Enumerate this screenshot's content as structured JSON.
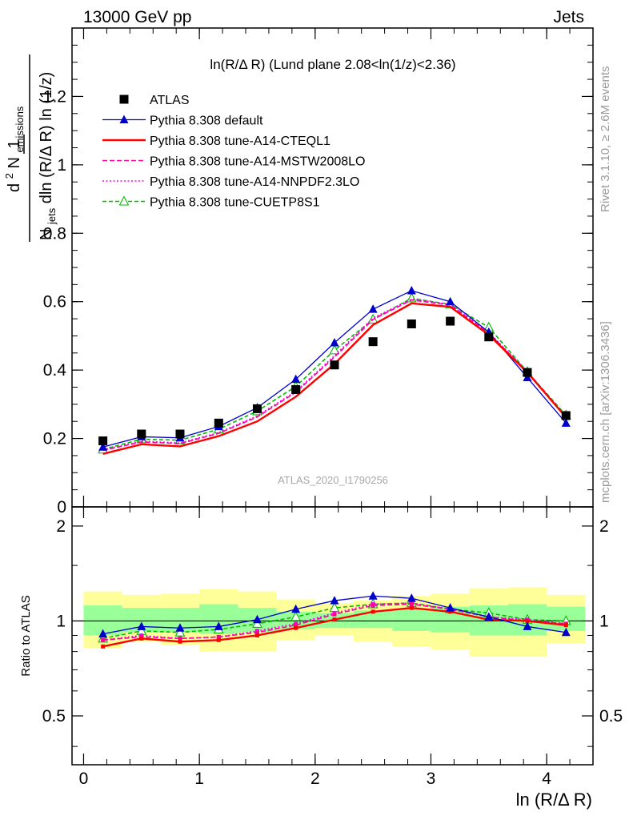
{
  "header": {
    "left": "13000 GeV pp",
    "right": "Jets"
  },
  "side_labels": {
    "rivet": "Rivet 3.1.10, ≥ 2.6M events",
    "mcplots": "mcplots.cern.ch [arXiv:1306.3436]"
  },
  "watermark": "ATLAS_2020_I1790256",
  "colors": {
    "atlas": "#000000",
    "default": "#0000cc",
    "cteql1": "#ff0000",
    "mstw": "#ff0099",
    "nnpdf": "#ff00ff",
    "cuetp8s1": "#00bb00",
    "band_outer": "#ffff99",
    "band_inner": "#99ff99"
  },
  "chart_data": [
    {
      "type": "line",
      "title": "ln(R/Δ R) (Lund plane 2.08<ln(1/z)<2.36)",
      "ylabel": "1/N_jets d²N_emissions / dln(R/ΔR) ln(1/z)",
      "ylabel_parts": {
        "one": "1",
        "top_d": "d",
        "top_sup": "2",
        "top_N": " N",
        "top_sub": "emissions",
        "bottom_N": "N",
        "bottom_sub": "jets",
        "bottom_rest": "dln (R/Δ R) ln (1/z)"
      },
      "xlim": [
        -0.1,
        4.4
      ],
      "ylim": [
        0,
        1.4
      ],
      "yticks": [
        0,
        0.2,
        0.4,
        0.6,
        0.8,
        1,
        1.2
      ],
      "ytick_labels": [
        "0",
        "0.2",
        "0.4",
        "0.6",
        "0.8",
        "1",
        "1.2"
      ],
      "x": [
        0.167,
        0.5,
        0.833,
        1.167,
        1.5,
        1.833,
        2.167,
        2.5,
        2.833,
        3.167,
        3.5,
        3.833,
        4.167
      ],
      "series": [
        {
          "name": "ATLAS",
          "key": "atlas",
          "marker": "square",
          "values": [
            0.193,
            0.213,
            0.213,
            0.245,
            0.287,
            0.343,
            0.415,
            0.483,
            0.535,
            0.543,
            0.497,
            0.393,
            0.267
          ]
        },
        {
          "name": "Pythia 8.308 default",
          "key": "default",
          "marker": "triangle",
          "values": [
            0.175,
            0.205,
            0.202,
            0.235,
            0.29,
            0.373,
            0.48,
            0.578,
            0.632,
            0.6,
            0.511,
            0.378,
            0.245
          ]
        },
        {
          "name": "Pythia 8.308 tune-A14-CTEQL1",
          "key": "cteql1",
          "marker": "none",
          "values": [
            0.155,
            0.183,
            0.177,
            0.207,
            0.25,
            0.322,
            0.418,
            0.532,
            0.595,
            0.585,
            0.503,
            0.393,
            0.262
          ]
        },
        {
          "name": "Pythia 8.308 tune-A14-MSTW2008LO",
          "key": "mstw",
          "marker": "none",
          "values": [
            0.165,
            0.19,
            0.185,
            0.215,
            0.263,
            0.335,
            0.438,
            0.548,
            0.605,
            0.59,
            0.508,
            0.395,
            0.262
          ]
        },
        {
          "name": "Pythia 8.308 tune-A14-NNPDF2.3LO",
          "key": "nnpdf",
          "marker": "none",
          "values": [
            0.167,
            0.192,
            0.187,
            0.217,
            0.266,
            0.338,
            0.442,
            0.552,
            0.608,
            0.592,
            0.51,
            0.396,
            0.263
          ]
        },
        {
          "name": "Pythia 8.308 tune-CUETP8S1",
          "key": "cuetp8s1",
          "marker": "open-triangle",
          "values": [
            0.168,
            0.198,
            0.195,
            0.227,
            0.28,
            0.352,
            0.458,
            0.548,
            0.61,
            0.592,
            0.525,
            0.395,
            0.268
          ]
        }
      ]
    },
    {
      "type": "line",
      "ylabel": "Ratio to ATLAS",
      "xlabel": "ln (R/Δ R)",
      "xlim": [
        -0.1,
        4.4
      ],
      "ylim": [
        0.35,
        2.3
      ],
      "xticks": [
        0,
        1,
        2,
        3,
        4
      ],
      "xtick_labels": [
        "0",
        "1",
        "2",
        "3",
        "4"
      ],
      "yticks": [
        0.5,
        1,
        2
      ],
      "ytick_labels": [
        "0.5",
        "1",
        "2"
      ],
      "x_edges": [
        0.0,
        0.333,
        0.667,
        1.0,
        1.333,
        1.667,
        2.0,
        2.333,
        2.667,
        3.0,
        3.333,
        3.667,
        4.0,
        4.333
      ],
      "band_outer": [
        [
          0.82,
          1.24
        ],
        [
          0.86,
          1.21
        ],
        [
          0.84,
          1.22
        ],
        [
          0.8,
          1.26
        ],
        [
          0.8,
          1.24
        ],
        [
          0.87,
          1.17
        ],
        [
          0.9,
          1.14
        ],
        [
          0.86,
          1.16
        ],
        [
          0.83,
          1.2
        ],
        [
          0.81,
          1.22
        ],
        [
          0.77,
          1.27
        ],
        [
          0.77,
          1.28
        ],
        [
          0.85,
          1.21
        ]
      ],
      "band_inner": [
        [
          0.9,
          1.12
        ],
        [
          0.92,
          1.1
        ],
        [
          0.92,
          1.1
        ],
        [
          0.91,
          1.13
        ],
        [
          0.92,
          1.1
        ],
        [
          0.94,
          1.07
        ],
        [
          0.95,
          1.06
        ],
        [
          0.95,
          1.08
        ],
        [
          0.93,
          1.09
        ],
        [
          0.92,
          1.11
        ],
        [
          0.9,
          1.12
        ],
        [
          0.9,
          1.13
        ],
        [
          0.93,
          1.11
        ]
      ],
      "series": [
        {
          "name": "Pythia 8.308 default",
          "key": "default",
          "marker": "triangle",
          "values": [
            0.91,
            0.96,
            0.95,
            0.96,
            1.01,
            1.09,
            1.16,
            1.2,
            1.18,
            1.1,
            1.03,
            0.96,
            0.92
          ]
        },
        {
          "name": "Pythia 8.308 tune-A14-CTEQL1",
          "key": "cteql1",
          "marker": "small-square",
          "values": [
            0.83,
            0.88,
            0.86,
            0.87,
            0.9,
            0.95,
            1.01,
            1.07,
            1.1,
            1.07,
            1.01,
            1.0,
            0.97
          ]
        },
        {
          "name": "Pythia 8.308 tune-A14-MSTW2008LO",
          "key": "mstw",
          "marker": "small-square",
          "values": [
            0.87,
            0.89,
            0.88,
            0.89,
            0.92,
            0.97,
            1.05,
            1.12,
            1.13,
            1.09,
            1.03,
            1.0,
            0.98
          ]
        },
        {
          "name": "Pythia 8.308 tune-A14-NNPDF2.3LO",
          "key": "nnpdf",
          "marker": "small-square",
          "values": [
            0.87,
            0.9,
            0.88,
            0.89,
            0.93,
            0.98,
            1.06,
            1.13,
            1.14,
            1.09,
            1.03,
            1.01,
            0.98
          ]
        },
        {
          "name": "Pythia 8.308 tune-CUETP8S1",
          "key": "cuetp8s1",
          "marker": "open-triangle",
          "values": [
            0.88,
            0.93,
            0.92,
            0.94,
            0.98,
            1.03,
            1.1,
            1.13,
            1.14,
            1.09,
            1.06,
            1.01,
            1.0
          ]
        }
      ]
    }
  ]
}
